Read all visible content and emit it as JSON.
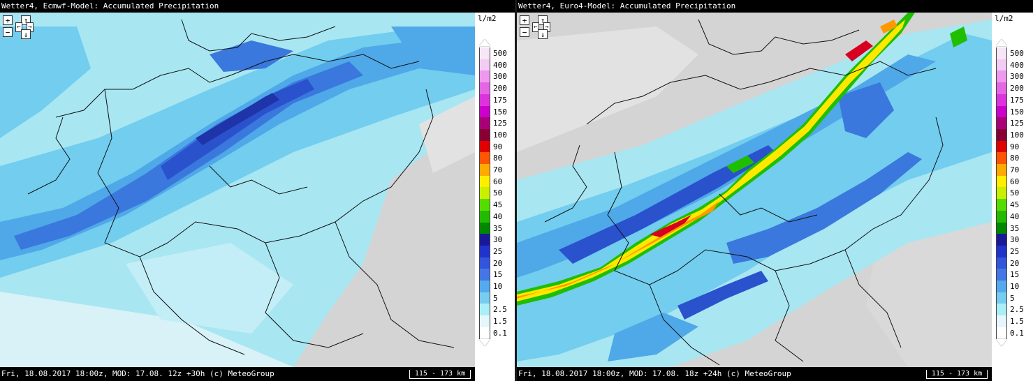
{
  "left_panel": {
    "title": "Wetter4, Ecmwf-Model: Accumulated Precipitation",
    "footer": "Fri, 18.08.2017 18:00z, MOD: 17.08. 12z +30h (c) MeteoGroup",
    "scale": "115 - 173 km"
  },
  "right_panel": {
    "title": "Wetter4, Euro4-Model: Accumulated Precipitation",
    "footer": "Fri, 18.08.2017 18:00z, MOD: 17.08. 18z +24h (c) MeteoGroup",
    "scale": "115 - 173 km"
  },
  "legend": {
    "unit": "l/m2",
    "levels": [
      {
        "label": "500",
        "color": "#f7e6f7"
      },
      {
        "label": "400",
        "color": "#f2ccf2"
      },
      {
        "label": "300",
        "color": "#ee99ee"
      },
      {
        "label": "200",
        "color": "#e566e5"
      },
      {
        "label": "175",
        "color": "#dd33dd"
      },
      {
        "label": "150",
        "color": "#cc00cc"
      },
      {
        "label": "125",
        "color": "#aa0077"
      },
      {
        "label": "100",
        "color": "#880033"
      },
      {
        "label": "90",
        "color": "#e00000"
      },
      {
        "label": "80",
        "color": "#ff5500"
      },
      {
        "label": "70",
        "color": "#ffaa00"
      },
      {
        "label": "60",
        "color": "#ffee00"
      },
      {
        "label": "50",
        "color": "#c8f000"
      },
      {
        "label": "45",
        "color": "#55dd00"
      },
      {
        "label": "40",
        "color": "#22bb00"
      },
      {
        "label": "35",
        "color": "#008800"
      },
      {
        "label": "30",
        "color": "#1a1a99"
      },
      {
        "label": "25",
        "color": "#2233cc"
      },
      {
        "label": "20",
        "color": "#3355dd"
      },
      {
        "label": "15",
        "color": "#4477e6"
      },
      {
        "label": "10",
        "color": "#55aaee"
      },
      {
        "label": "5",
        "color": "#77ccf0"
      },
      {
        "label": "2.5",
        "color": "#aaeef8"
      },
      {
        "label": "1.5",
        "color": "#e6f7fb"
      },
      {
        "label": "0.1",
        "color": "#ffffff"
      }
    ]
  },
  "map_colors": {
    "dry": "#d4d4d4",
    "dry_light": "#e2e2e2",
    "p1": "#d8f2f8",
    "p2": "#a8e6f2",
    "p3": "#72cdee",
    "p4": "#4fa8e8",
    "p5": "#3a78dd",
    "p6": "#2a52cc",
    "p7": "#1f34a8",
    "green": "#1fbf00",
    "yellow": "#ffe800",
    "orange": "#ff9900",
    "red": "#d80020",
    "magenta": "#cc00aa"
  }
}
